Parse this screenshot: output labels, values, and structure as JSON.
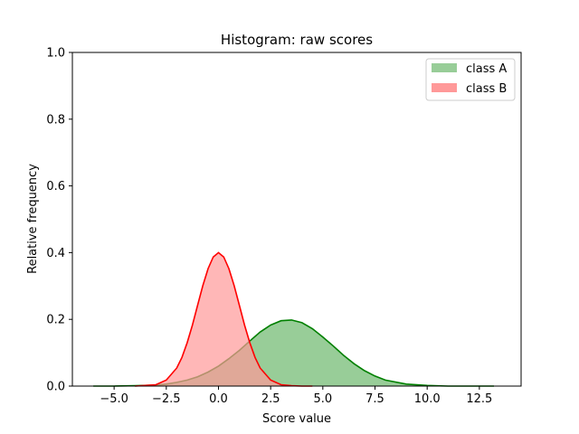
{
  "chart_data": {
    "type": "area",
    "title": "Histogram: raw scores",
    "xlabel": "Score value",
    "ylabel": "Relative frequency",
    "xlim": [
      -7.0,
      14.5
    ],
    "ylim": [
      0,
      1.0
    ],
    "x_ticks": [
      -5.0,
      -2.5,
      0.0,
      2.5,
      5.0,
      7.5,
      10.0,
      12.5
    ],
    "x_tick_labels": [
      "−5.0",
      "−2.5",
      "0.0",
      "2.5",
      "5.0",
      "7.5",
      "10.0",
      "12.5"
    ],
    "y_ticks": [
      0.0,
      0.2,
      0.4,
      0.6,
      0.8,
      1.0
    ],
    "y_tick_labels": [
      "0.0",
      "0.2",
      "0.4",
      "0.6",
      "0.8",
      "1.0"
    ],
    "grid": false,
    "legend_position": "top-right",
    "series": [
      {
        "name": "class A",
        "fill_color": "#98cd98",
        "line_color": "#008000",
        "x": [
          -6.0,
          -5.0,
          -4.0,
          -3.0,
          -2.5,
          -2.0,
          -1.5,
          -1.0,
          -0.5,
          0.0,
          0.5,
          1.0,
          1.5,
          2.0,
          2.5,
          3.0,
          3.5,
          4.0,
          4.5,
          5.0,
          5.5,
          6.0,
          6.5,
          7.0,
          7.5,
          8.0,
          9.0,
          10.0,
          11.0,
          12.0,
          13.2
        ],
        "values": [
          0.0,
          0.0,
          0.001,
          0.003,
          0.006,
          0.011,
          0.018,
          0.028,
          0.042,
          0.06,
          0.082,
          0.107,
          0.135,
          0.162,
          0.183,
          0.196,
          0.198,
          0.19,
          0.172,
          0.147,
          0.12,
          0.092,
          0.067,
          0.046,
          0.03,
          0.018,
          0.006,
          0.002,
          0.0,
          0.0,
          0.0
        ]
      },
      {
        "name": "class B",
        "fill_color": "#ff9999",
        "line_color": "#ff0000",
        "x": [
          -4.0,
          -3.0,
          -2.5,
          -2.0,
          -1.75,
          -1.5,
          -1.25,
          -1.0,
          -0.75,
          -0.5,
          -0.25,
          0.0,
          0.25,
          0.5,
          0.75,
          1.0,
          1.25,
          1.5,
          1.75,
          2.0,
          2.5,
          3.0,
          3.5,
          4.0,
          4.5
        ],
        "values": [
          0.0,
          0.004,
          0.018,
          0.054,
          0.086,
          0.13,
          0.183,
          0.242,
          0.301,
          0.352,
          0.387,
          0.4,
          0.387,
          0.352,
          0.301,
          0.242,
          0.183,
          0.13,
          0.086,
          0.054,
          0.018,
          0.004,
          0.001,
          0.0,
          0.0
        ]
      }
    ]
  }
}
